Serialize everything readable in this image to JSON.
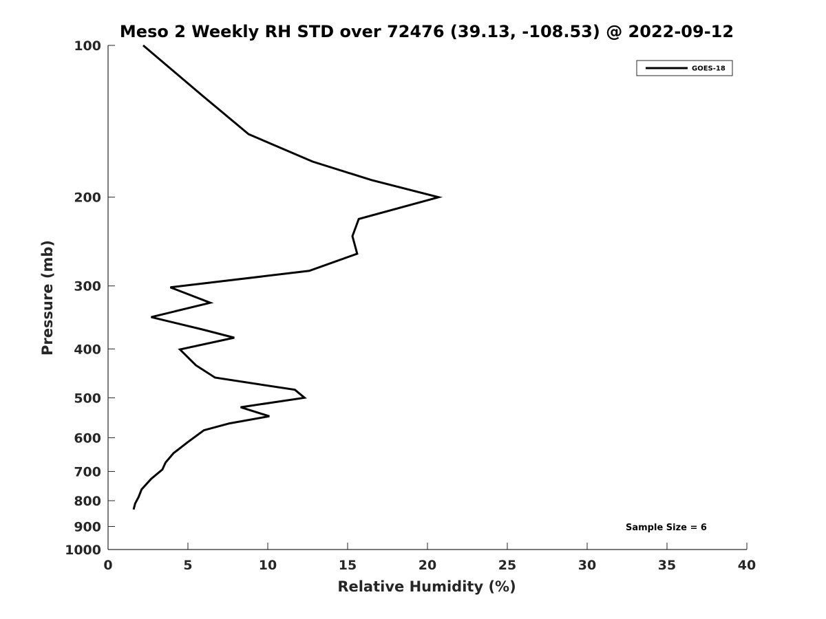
{
  "chart_data": {
    "type": "line",
    "title": "Meso 2 Weekly RH STD over 72476 (39.13, -108.53) @ 2022-09-12",
    "xlabel": "Relative Humidity (%)",
    "ylabel": "Pressure (mb)",
    "xlim": [
      0,
      40
    ],
    "ylim": [
      100,
      1000
    ],
    "yscale": "log",
    "y_reversed": true,
    "grid": false,
    "x_ticks": [
      0,
      5,
      10,
      15,
      20,
      25,
      30,
      35,
      40
    ],
    "y_ticks": [
      100,
      200,
      300,
      400,
      500,
      600,
      700,
      800,
      900,
      1000
    ],
    "legend_position": "top-right",
    "annotation": "Sample Size = 6",
    "series": [
      {
        "name": "GOES-18",
        "color": "#000000",
        "points": [
          [
            2.2,
            100
          ],
          [
            5.8,
            125
          ],
          [
            8.8,
            150
          ],
          [
            12.8,
            170
          ],
          [
            16.5,
            185
          ],
          [
            20.7,
            200
          ],
          [
            15.7,
            221
          ],
          [
            15.3,
            239
          ],
          [
            15.6,
            259
          ],
          [
            12.6,
            280
          ],
          [
            3.9,
            302
          ],
          [
            6.4,
            324
          ],
          [
            2.7,
            346
          ],
          [
            5.9,
            366
          ],
          [
            7.9,
            380
          ],
          [
            4.5,
            401
          ],
          [
            5.5,
            431
          ],
          [
            6.7,
            456
          ],
          [
            11.7,
            482
          ],
          [
            12.3,
            500
          ],
          [
            8.3,
            522
          ],
          [
            10.1,
            544
          ],
          [
            7.6,
            562
          ],
          [
            6.0,
            580
          ],
          [
            5.0,
            612
          ],
          [
            4.1,
            644
          ],
          [
            3.6,
            672
          ],
          [
            3.4,
            694
          ],
          [
            2.7,
            724
          ],
          [
            2.1,
            760
          ],
          [
            1.9,
            788
          ],
          [
            1.7,
            810
          ],
          [
            1.6,
            833
          ]
        ]
      }
    ]
  }
}
